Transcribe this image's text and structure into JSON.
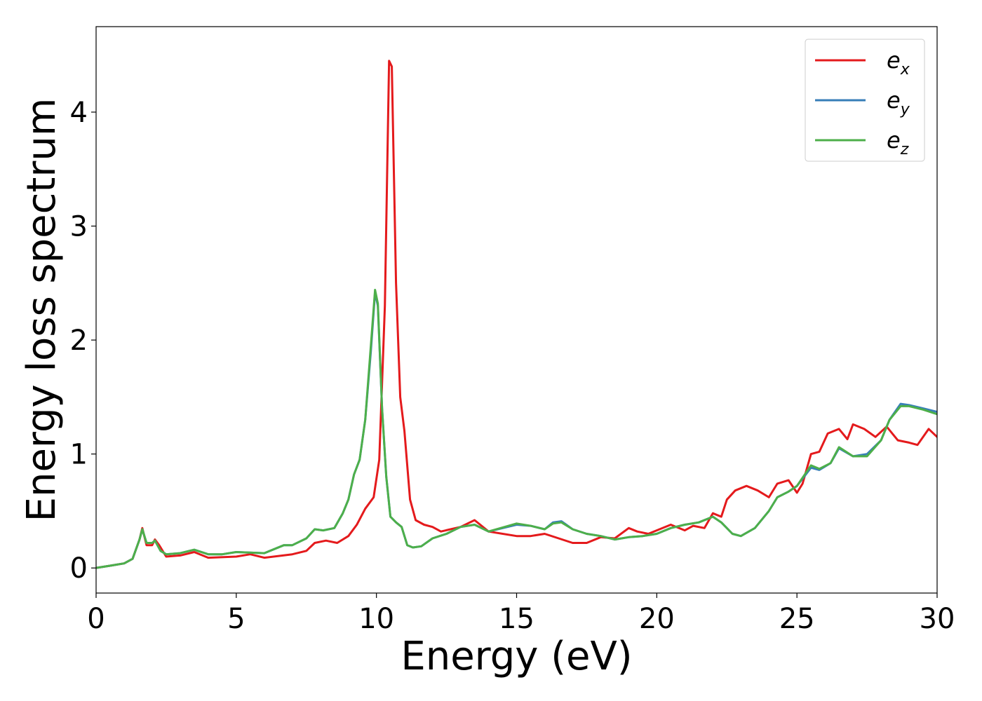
{
  "chart_data": {
    "type": "line",
    "xlabel": "Energy (eV)",
    "ylabel": "Energy loss spectrum",
    "xlim": [
      0,
      30
    ],
    "ylim": [
      -0.22,
      4.75
    ],
    "xticks": [
      "0",
      "5",
      "10",
      "15",
      "20",
      "25",
      "30"
    ],
    "yticks": [
      "0",
      "1",
      "2",
      "3",
      "4"
    ],
    "grid": false,
    "legend_position": "top-right",
    "series": [
      {
        "name": "e_x",
        "label_base": "e",
        "label_sub": "x",
        "color": "#e41a1c",
        "points": [
          [
            0,
            0
          ],
          [
            0.5,
            0.02
          ],
          [
            1.0,
            0.04
          ],
          [
            1.3,
            0.08
          ],
          [
            1.55,
            0.25
          ],
          [
            1.65,
            0.35
          ],
          [
            1.8,
            0.2
          ],
          [
            2.0,
            0.2
          ],
          [
            2.1,
            0.25
          ],
          [
            2.25,
            0.2
          ],
          [
            2.5,
            0.1
          ],
          [
            3.0,
            0.11
          ],
          [
            3.5,
            0.14
          ],
          [
            4.0,
            0.09
          ],
          [
            5.0,
            0.1
          ],
          [
            5.5,
            0.12
          ],
          [
            6.0,
            0.09
          ],
          [
            7.0,
            0.12
          ],
          [
            7.5,
            0.15
          ],
          [
            7.8,
            0.22
          ],
          [
            8.2,
            0.24
          ],
          [
            8.6,
            0.22
          ],
          [
            9.0,
            0.28
          ],
          [
            9.3,
            0.38
          ],
          [
            9.6,
            0.52
          ],
          [
            9.9,
            0.62
          ],
          [
            10.1,
            0.95
          ],
          [
            10.3,
            2.3
          ],
          [
            10.45,
            4.45
          ],
          [
            10.55,
            4.4
          ],
          [
            10.7,
            2.5
          ],
          [
            10.85,
            1.5
          ],
          [
            11.0,
            1.2
          ],
          [
            11.2,
            0.6
          ],
          [
            11.4,
            0.42
          ],
          [
            11.7,
            0.38
          ],
          [
            12.0,
            0.36
          ],
          [
            12.3,
            0.32
          ],
          [
            13.0,
            0.36
          ],
          [
            13.5,
            0.42
          ],
          [
            14.0,
            0.32
          ],
          [
            15.0,
            0.28
          ],
          [
            15.5,
            0.28
          ],
          [
            16.0,
            0.3
          ],
          [
            16.5,
            0.26
          ],
          [
            17.0,
            0.22
          ],
          [
            17.5,
            0.22
          ],
          [
            18.0,
            0.27
          ],
          [
            18.5,
            0.26
          ],
          [
            19.0,
            0.35
          ],
          [
            19.3,
            0.32
          ],
          [
            19.7,
            0.3
          ],
          [
            20.0,
            0.33
          ],
          [
            20.5,
            0.38
          ],
          [
            21.0,
            0.33
          ],
          [
            21.3,
            0.37
          ],
          [
            21.7,
            0.35
          ],
          [
            22.0,
            0.48
          ],
          [
            22.3,
            0.45
          ],
          [
            22.5,
            0.6
          ],
          [
            22.8,
            0.68
          ],
          [
            23.2,
            0.72
          ],
          [
            23.6,
            0.68
          ],
          [
            24.0,
            0.62
          ],
          [
            24.3,
            0.74
          ],
          [
            24.7,
            0.77
          ],
          [
            25.0,
            0.66
          ],
          [
            25.2,
            0.74
          ],
          [
            25.5,
            1.0
          ],
          [
            25.8,
            1.02
          ],
          [
            26.1,
            1.18
          ],
          [
            26.5,
            1.22
          ],
          [
            26.8,
            1.13
          ],
          [
            27.0,
            1.26
          ],
          [
            27.4,
            1.22
          ],
          [
            27.8,
            1.15
          ],
          [
            28.2,
            1.24
          ],
          [
            28.6,
            1.12
          ],
          [
            29.0,
            1.1
          ],
          [
            29.3,
            1.08
          ],
          [
            29.7,
            1.22
          ],
          [
            30.0,
            1.15
          ]
        ]
      },
      {
        "name": "e_y",
        "label_base": "e",
        "label_sub": "y",
        "color": "#377eb8",
        "points": [
          [
            0,
            0
          ],
          [
            0.5,
            0.02
          ],
          [
            1.0,
            0.04
          ],
          [
            1.3,
            0.08
          ],
          [
            1.55,
            0.25
          ],
          [
            1.65,
            0.34
          ],
          [
            1.8,
            0.22
          ],
          [
            2.0,
            0.22
          ],
          [
            2.1,
            0.24
          ],
          [
            2.3,
            0.15
          ],
          [
            2.5,
            0.12
          ],
          [
            3.0,
            0.13
          ],
          [
            3.5,
            0.16
          ],
          [
            4.0,
            0.12
          ],
          [
            4.5,
            0.12
          ],
          [
            5.0,
            0.14
          ],
          [
            6.0,
            0.13
          ],
          [
            6.7,
            0.2
          ],
          [
            7.0,
            0.2
          ],
          [
            7.5,
            0.26
          ],
          [
            7.8,
            0.34
          ],
          [
            8.1,
            0.33
          ],
          [
            8.5,
            0.35
          ],
          [
            8.8,
            0.48
          ],
          [
            9.0,
            0.6
          ],
          [
            9.2,
            0.82
          ],
          [
            9.4,
            0.95
          ],
          [
            9.6,
            1.3
          ],
          [
            9.8,
            1.9
          ],
          [
            9.95,
            2.42
          ],
          [
            10.05,
            2.3
          ],
          [
            10.2,
            1.4
          ],
          [
            10.35,
            0.8
          ],
          [
            10.5,
            0.45
          ],
          [
            10.7,
            0.4
          ],
          [
            10.9,
            0.36
          ],
          [
            11.1,
            0.2
          ],
          [
            11.3,
            0.18
          ],
          [
            11.6,
            0.19
          ],
          [
            12.0,
            0.26
          ],
          [
            12.5,
            0.3
          ],
          [
            13.0,
            0.36
          ],
          [
            13.5,
            0.38
          ],
          [
            14.0,
            0.32
          ],
          [
            15.0,
            0.38
          ],
          [
            15.5,
            0.37
          ],
          [
            16.0,
            0.34
          ],
          [
            16.3,
            0.4
          ],
          [
            16.6,
            0.41
          ],
          [
            17.0,
            0.34
          ],
          [
            17.5,
            0.3
          ],
          [
            18.0,
            0.28
          ],
          [
            18.5,
            0.25
          ],
          [
            19.0,
            0.27
          ],
          [
            19.5,
            0.28
          ],
          [
            20.0,
            0.3
          ],
          [
            20.5,
            0.35
          ],
          [
            21.0,
            0.38
          ],
          [
            21.5,
            0.4
          ],
          [
            22.0,
            0.45
          ],
          [
            22.3,
            0.4
          ],
          [
            22.7,
            0.3
          ],
          [
            23.0,
            0.28
          ],
          [
            23.5,
            0.35
          ],
          [
            24.0,
            0.5
          ],
          [
            24.3,
            0.62
          ],
          [
            24.7,
            0.67
          ],
          [
            25.0,
            0.72
          ],
          [
            25.5,
            0.88
          ],
          [
            25.8,
            0.86
          ],
          [
            26.2,
            0.92
          ],
          [
            26.5,
            1.05
          ],
          [
            27.0,
            0.98
          ],
          [
            27.5,
            1.0
          ],
          [
            28.0,
            1.12
          ],
          [
            28.3,
            1.3
          ],
          [
            28.7,
            1.44
          ],
          [
            29.0,
            1.43
          ],
          [
            29.5,
            1.4
          ],
          [
            30.0,
            1.37
          ]
        ]
      },
      {
        "name": "e_z",
        "label_base": "e",
        "label_sub": "z",
        "color": "#4daf4a",
        "points": [
          [
            0,
            0
          ],
          [
            0.5,
            0.02
          ],
          [
            1.0,
            0.04
          ],
          [
            1.3,
            0.08
          ],
          [
            1.55,
            0.25
          ],
          [
            1.65,
            0.34
          ],
          [
            1.8,
            0.22
          ],
          [
            2.0,
            0.22
          ],
          [
            2.1,
            0.24
          ],
          [
            2.3,
            0.15
          ],
          [
            2.5,
            0.12
          ],
          [
            3.0,
            0.13
          ],
          [
            3.5,
            0.16
          ],
          [
            4.0,
            0.12
          ],
          [
            4.5,
            0.12
          ],
          [
            5.0,
            0.14
          ],
          [
            6.0,
            0.13
          ],
          [
            6.7,
            0.2
          ],
          [
            7.0,
            0.2
          ],
          [
            7.5,
            0.26
          ],
          [
            7.8,
            0.34
          ],
          [
            8.1,
            0.33
          ],
          [
            8.5,
            0.35
          ],
          [
            8.8,
            0.48
          ],
          [
            9.0,
            0.6
          ],
          [
            9.2,
            0.82
          ],
          [
            9.4,
            0.95
          ],
          [
            9.6,
            1.3
          ],
          [
            9.8,
            1.95
          ],
          [
            9.95,
            2.44
          ],
          [
            10.05,
            2.32
          ],
          [
            10.2,
            1.4
          ],
          [
            10.35,
            0.8
          ],
          [
            10.5,
            0.45
          ],
          [
            10.7,
            0.4
          ],
          [
            10.9,
            0.36
          ],
          [
            11.1,
            0.2
          ],
          [
            11.3,
            0.18
          ],
          [
            11.6,
            0.19
          ],
          [
            12.0,
            0.26
          ],
          [
            12.5,
            0.3
          ],
          [
            13.0,
            0.36
          ],
          [
            13.5,
            0.38
          ],
          [
            14.0,
            0.32
          ],
          [
            15.0,
            0.39
          ],
          [
            15.5,
            0.37
          ],
          [
            16.0,
            0.34
          ],
          [
            16.3,
            0.39
          ],
          [
            16.6,
            0.4
          ],
          [
            17.0,
            0.34
          ],
          [
            17.5,
            0.3
          ],
          [
            18.0,
            0.28
          ],
          [
            18.5,
            0.25
          ],
          [
            19.0,
            0.27
          ],
          [
            19.5,
            0.28
          ],
          [
            20.0,
            0.3
          ],
          [
            20.5,
            0.35
          ],
          [
            21.0,
            0.38
          ],
          [
            21.5,
            0.4
          ],
          [
            22.0,
            0.45
          ],
          [
            22.3,
            0.4
          ],
          [
            22.7,
            0.3
          ],
          [
            23.0,
            0.28
          ],
          [
            23.5,
            0.35
          ],
          [
            24.0,
            0.5
          ],
          [
            24.3,
            0.62
          ],
          [
            24.7,
            0.67
          ],
          [
            25.0,
            0.72
          ],
          [
            25.5,
            0.9
          ],
          [
            25.8,
            0.87
          ],
          [
            26.2,
            0.92
          ],
          [
            26.5,
            1.06
          ],
          [
            27.0,
            0.98
          ],
          [
            27.5,
            0.98
          ],
          [
            28.0,
            1.12
          ],
          [
            28.3,
            1.3
          ],
          [
            28.7,
            1.42
          ],
          [
            29.0,
            1.42
          ],
          [
            29.5,
            1.39
          ],
          [
            30.0,
            1.35
          ]
        ]
      }
    ]
  }
}
